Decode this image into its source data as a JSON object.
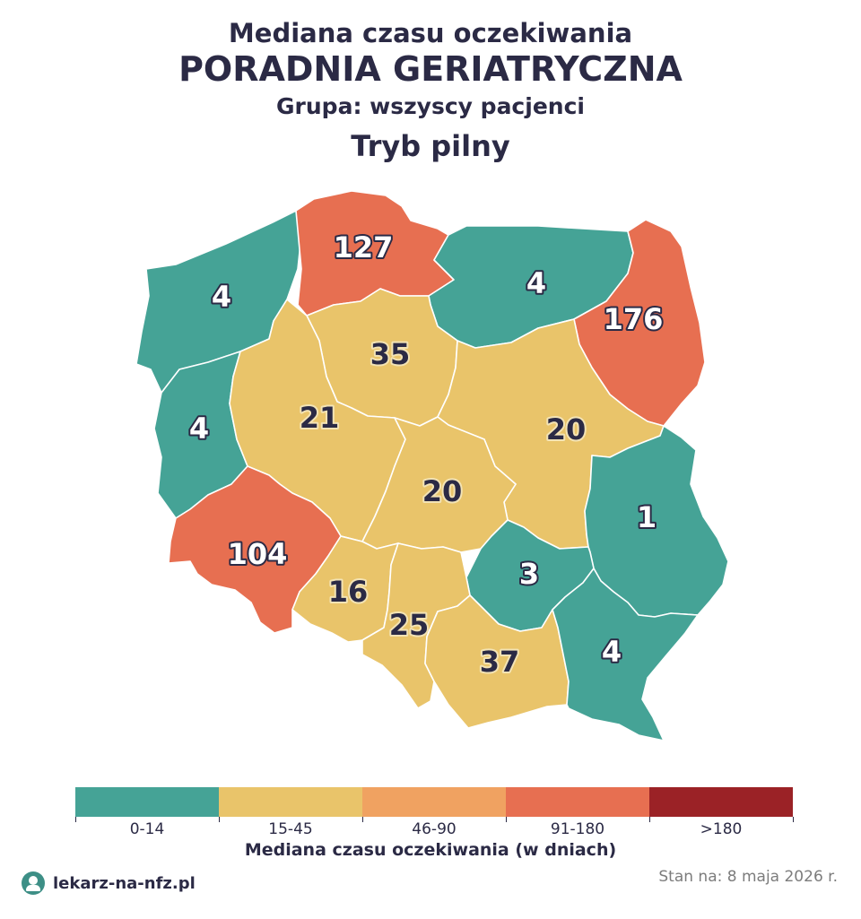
{
  "header": {
    "line1": "Mediana czasu oczekiwania",
    "line2": "PORADNIA GERIATRYCZNA",
    "line3": "Grupa: wszyscy pacjenci",
    "line4": "Tryb pilny"
  },
  "colors": {
    "bin_0_14": "#45a396",
    "bin_15_45": "#e9c46a",
    "bin_46_90": "#f0a261",
    "bin_91_180": "#e76f51",
    "bin_over_180": "#9b2226",
    "text": "#2b2a45"
  },
  "regions": [
    {
      "id": "zachodniopomorskie",
      "value": "4",
      "bin": "bin_0_14"
    },
    {
      "id": "pomorskie",
      "value": "127",
      "bin": "bin_91_180"
    },
    {
      "id": "warminsko-mazurskie",
      "value": "4",
      "bin": "bin_0_14"
    },
    {
      "id": "podlaskie",
      "value": "176",
      "bin": "bin_91_180"
    },
    {
      "id": "kujawsko-pomorskie",
      "value": "35",
      "bin": "bin_15_45"
    },
    {
      "id": "lubuskie",
      "value": "4",
      "bin": "bin_0_14"
    },
    {
      "id": "wielkopolskie",
      "value": "21",
      "bin": "bin_15_45"
    },
    {
      "id": "mazowieckie",
      "value": "20",
      "bin": "bin_15_45"
    },
    {
      "id": "lodzkie",
      "value": "20",
      "bin": "bin_15_45"
    },
    {
      "id": "lubelskie",
      "value": "1",
      "bin": "bin_0_14"
    },
    {
      "id": "dolnoslaskie",
      "value": "104",
      "bin": "bin_91_180"
    },
    {
      "id": "swietokrzyskie",
      "value": "3",
      "bin": "bin_0_14"
    },
    {
      "id": "opolskie",
      "value": "16",
      "bin": "bin_15_45"
    },
    {
      "id": "slaskie",
      "value": "25",
      "bin": "bin_15_45"
    },
    {
      "id": "malopolskie",
      "value": "37",
      "bin": "bin_15_45"
    },
    {
      "id": "podkarpackie",
      "value": "4",
      "bin": "bin_0_14"
    }
  ],
  "legend": {
    "items": [
      {
        "label": "0-14",
        "color": "#45a396"
      },
      {
        "label": "15-45",
        "color": "#e9c46a"
      },
      {
        "label": "46-90",
        "color": "#f0a261"
      },
      {
        "label": "91-180",
        "color": "#e76f51"
      },
      {
        "label": ">180",
        "color": "#9b2226"
      }
    ],
    "title": "Mediana czasu oczekiwania (w dniach)"
  },
  "footer": {
    "brand_icon": "doctor-avatar-icon",
    "brand": "lekarz-na-nfz.pl",
    "date": "Stan na: 8 maja 2026 r."
  }
}
